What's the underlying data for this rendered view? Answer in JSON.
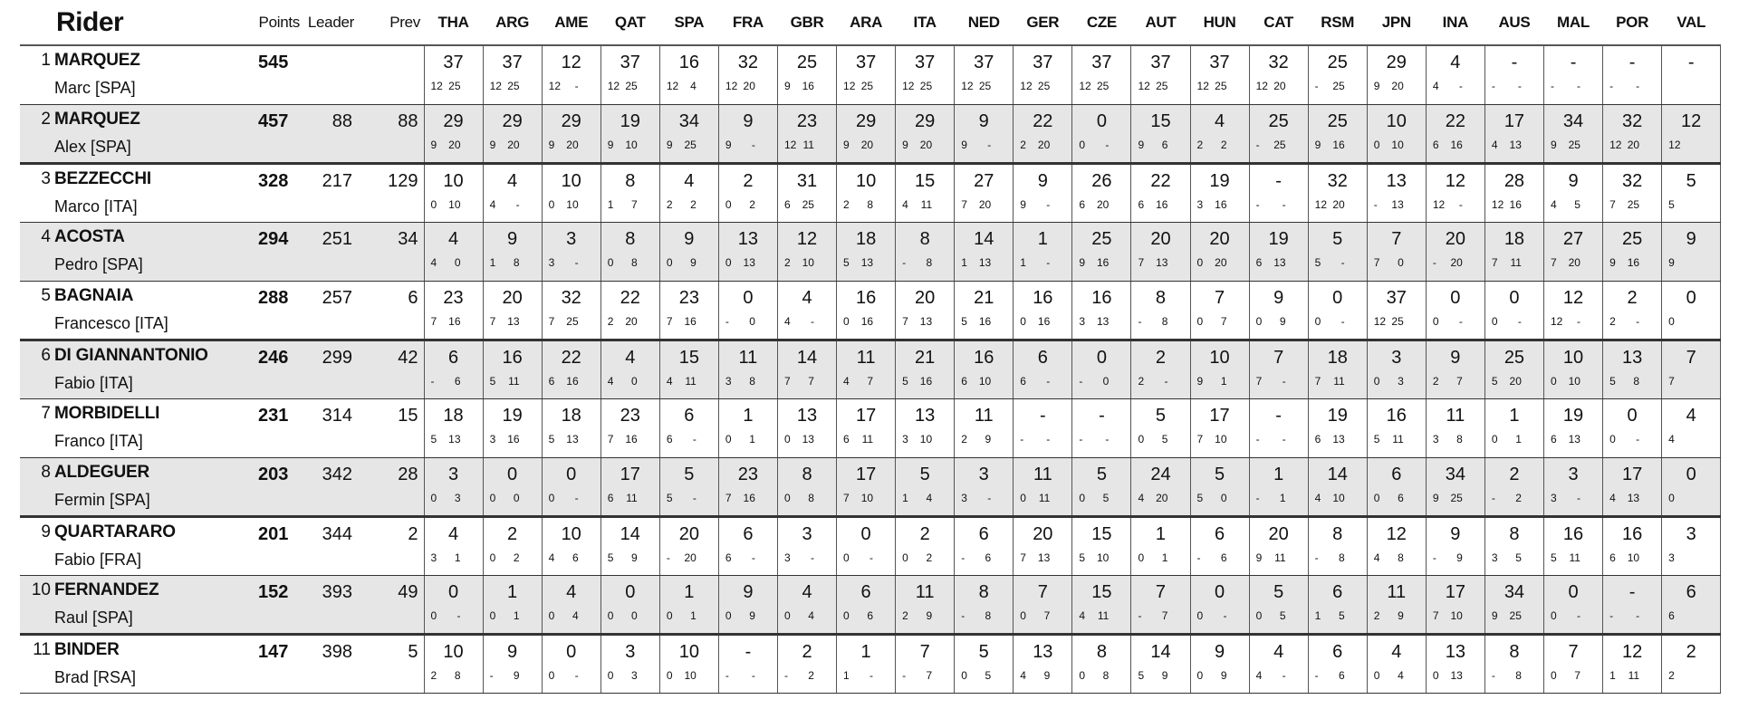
{
  "header": {
    "rider": "Rider",
    "points": "Points",
    "leader": "Leader",
    "prev": "Prev",
    "races": [
      "THA",
      "ARG",
      "AME",
      "QAT",
      "SPA",
      "FRA",
      "GBR",
      "ARA",
      "ITA",
      "NED",
      "GER",
      "CZE",
      "AUT",
      "HUN",
      "CAT",
      "RSM",
      "JPN",
      "INA",
      "AUS",
      "MAL",
      "POR",
      "VAL"
    ]
  },
  "riders": [
    {
      "rank": "1",
      "surname": "MARQUEZ",
      "first": "Marc [SPA]",
      "points": "545",
      "leader": "",
      "prev": "",
      "results": [
        [
          "37",
          "12",
          "25"
        ],
        [
          "37",
          "12",
          "25"
        ],
        [
          "12",
          "12",
          "-"
        ],
        [
          "37",
          "12",
          "25"
        ],
        [
          "16",
          "12",
          "4"
        ],
        [
          "32",
          "12",
          "20"
        ],
        [
          "25",
          "9",
          "16"
        ],
        [
          "37",
          "12",
          "25"
        ],
        [
          "37",
          "12",
          "25"
        ],
        [
          "37",
          "12",
          "25"
        ],
        [
          "37",
          "12",
          "25"
        ],
        [
          "37",
          "12",
          "25"
        ],
        [
          "37",
          "12",
          "25"
        ],
        [
          "37",
          "12",
          "25"
        ],
        [
          "32",
          "12",
          "20"
        ],
        [
          "25",
          "-",
          "25"
        ],
        [
          "29",
          "9",
          "20"
        ],
        [
          "4",
          "4",
          "-"
        ],
        [
          "-",
          "-",
          "-"
        ],
        [
          "-",
          "-",
          "-"
        ],
        [
          "-",
          "-",
          "-"
        ],
        [
          "-",
          "",
          ""
        ]
      ]
    },
    {
      "rank": "2",
      "surname": "MARQUEZ",
      "first": "Alex [SPA]",
      "points": "457",
      "leader": "88",
      "prev": "88",
      "results": [
        [
          "29",
          "9",
          "20"
        ],
        [
          "29",
          "9",
          "20"
        ],
        [
          "29",
          "9",
          "20"
        ],
        [
          "19",
          "9",
          "10"
        ],
        [
          "34",
          "9",
          "25"
        ],
        [
          "9",
          "9",
          "-"
        ],
        [
          "23",
          "12",
          "11"
        ],
        [
          "29",
          "9",
          "20"
        ],
        [
          "29",
          "9",
          "20"
        ],
        [
          "9",
          "9",
          "-"
        ],
        [
          "22",
          "2",
          "20"
        ],
        [
          "0",
          "0",
          "-"
        ],
        [
          "15",
          "9",
          "6"
        ],
        [
          "4",
          "2",
          "2"
        ],
        [
          "25",
          "-",
          "25"
        ],
        [
          "25",
          "9",
          "16"
        ],
        [
          "10",
          "0",
          "10"
        ],
        [
          "22",
          "6",
          "16"
        ],
        [
          "17",
          "4",
          "13"
        ],
        [
          "34",
          "9",
          "25"
        ],
        [
          "32",
          "12",
          "20"
        ],
        [
          "12",
          "12",
          ""
        ]
      ]
    },
    {
      "rank": "3",
      "surname": "BEZZECCHI",
      "first": "Marco [ITA]",
      "points": "328",
      "leader": "217",
      "prev": "129",
      "results": [
        [
          "10",
          "0",
          "10"
        ],
        [
          "4",
          "4",
          "-"
        ],
        [
          "10",
          "0",
          "10"
        ],
        [
          "8",
          "1",
          "7"
        ],
        [
          "4",
          "2",
          "2"
        ],
        [
          "2",
          "0",
          "2"
        ],
        [
          "31",
          "6",
          "25"
        ],
        [
          "10",
          "2",
          "8"
        ],
        [
          "15",
          "4",
          "11"
        ],
        [
          "27",
          "7",
          "20"
        ],
        [
          "9",
          "9",
          "-"
        ],
        [
          "26",
          "6",
          "20"
        ],
        [
          "22",
          "6",
          "16"
        ],
        [
          "19",
          "3",
          "16"
        ],
        [
          "-",
          "-",
          "-"
        ],
        [
          "32",
          "12",
          "20"
        ],
        [
          "13",
          "-",
          "13"
        ],
        [
          "12",
          "12",
          "-"
        ],
        [
          "28",
          "12",
          "16"
        ],
        [
          "9",
          "4",
          "5"
        ],
        [
          "32",
          "7",
          "25"
        ],
        [
          "5",
          "5",
          ""
        ]
      ]
    },
    {
      "rank": "4",
      "surname": "ACOSTA",
      "first": "Pedro [SPA]",
      "points": "294",
      "leader": "251",
      "prev": "34",
      "results": [
        [
          "4",
          "4",
          "0"
        ],
        [
          "9",
          "1",
          "8"
        ],
        [
          "3",
          "3",
          "-"
        ],
        [
          "8",
          "0",
          "8"
        ],
        [
          "9",
          "0",
          "9"
        ],
        [
          "13",
          "0",
          "13"
        ],
        [
          "12",
          "2",
          "10"
        ],
        [
          "18",
          "5",
          "13"
        ],
        [
          "8",
          "-",
          "8"
        ],
        [
          "14",
          "1",
          "13"
        ],
        [
          "1",
          "1",
          "-"
        ],
        [
          "25",
          "9",
          "16"
        ],
        [
          "20",
          "7",
          "13"
        ],
        [
          "20",
          "0",
          "20"
        ],
        [
          "19",
          "6",
          "13"
        ],
        [
          "5",
          "5",
          "-"
        ],
        [
          "7",
          "7",
          "0"
        ],
        [
          "20",
          "-",
          "20"
        ],
        [
          "18",
          "7",
          "11"
        ],
        [
          "27",
          "7",
          "20"
        ],
        [
          "25",
          "9",
          "16"
        ],
        [
          "9",
          "9",
          ""
        ]
      ]
    },
    {
      "rank": "5",
      "surname": "BAGNAIA",
      "first": "Francesco [ITA]",
      "points": "288",
      "leader": "257",
      "prev": "6",
      "results": [
        [
          "23",
          "7",
          "16"
        ],
        [
          "20",
          "7",
          "13"
        ],
        [
          "32",
          "7",
          "25"
        ],
        [
          "22",
          "2",
          "20"
        ],
        [
          "23",
          "7",
          "16"
        ],
        [
          "0",
          "-",
          "0"
        ],
        [
          "4",
          "4",
          "-"
        ],
        [
          "16",
          "0",
          "16"
        ],
        [
          "20",
          "7",
          "13"
        ],
        [
          "21",
          "5",
          "16"
        ],
        [
          "16",
          "0",
          "16"
        ],
        [
          "16",
          "3",
          "13"
        ],
        [
          "8",
          "-",
          "8"
        ],
        [
          "7",
          "0",
          "7"
        ],
        [
          "9",
          "0",
          "9"
        ],
        [
          "0",
          "0",
          "-"
        ],
        [
          "37",
          "12",
          "25"
        ],
        [
          "0",
          "0",
          "-"
        ],
        [
          "0",
          "0",
          "-"
        ],
        [
          "12",
          "12",
          "-"
        ],
        [
          "2",
          "2",
          "-"
        ],
        [
          "0",
          "0",
          ""
        ]
      ]
    },
    {
      "rank": "6",
      "surname": "DI GIANNANTONIO",
      "first": "Fabio [ITA]",
      "points": "246",
      "leader": "299",
      "prev": "42",
      "results": [
        [
          "6",
          "-",
          "6"
        ],
        [
          "16",
          "5",
          "11"
        ],
        [
          "22",
          "6",
          "16"
        ],
        [
          "4",
          "4",
          "0"
        ],
        [
          "15",
          "4",
          "11"
        ],
        [
          "11",
          "3",
          "8"
        ],
        [
          "14",
          "7",
          "7"
        ],
        [
          "11",
          "4",
          "7"
        ],
        [
          "21",
          "5",
          "16"
        ],
        [
          "16",
          "6",
          "10"
        ],
        [
          "6",
          "6",
          "-"
        ],
        [
          "0",
          "-",
          "0"
        ],
        [
          "2",
          "2",
          "-"
        ],
        [
          "10",
          "9",
          "1"
        ],
        [
          "7",
          "7",
          "-"
        ],
        [
          "18",
          "7",
          "11"
        ],
        [
          "3",
          "0",
          "3"
        ],
        [
          "9",
          "2",
          "7"
        ],
        [
          "25",
          "5",
          "20"
        ],
        [
          "10",
          "0",
          "10"
        ],
        [
          "13",
          "5",
          "8"
        ],
        [
          "7",
          "7",
          ""
        ]
      ]
    },
    {
      "rank": "7",
      "surname": "MORBIDELLI",
      "first": "Franco [ITA]",
      "points": "231",
      "leader": "314",
      "prev": "15",
      "results": [
        [
          "18",
          "5",
          "13"
        ],
        [
          "19",
          "3",
          "16"
        ],
        [
          "18",
          "5",
          "13"
        ],
        [
          "23",
          "7",
          "16"
        ],
        [
          "6",
          "6",
          "-"
        ],
        [
          "1",
          "0",
          "1"
        ],
        [
          "13",
          "0",
          "13"
        ],
        [
          "17",
          "6",
          "11"
        ],
        [
          "13",
          "3",
          "10"
        ],
        [
          "11",
          "2",
          "9"
        ],
        [
          "-",
          "-",
          "-"
        ],
        [
          "-",
          "-",
          "-"
        ],
        [
          "5",
          "0",
          "5"
        ],
        [
          "17",
          "7",
          "10"
        ],
        [
          "-",
          "-",
          "-"
        ],
        [
          "19",
          "6",
          "13"
        ],
        [
          "16",
          "5",
          "11"
        ],
        [
          "11",
          "3",
          "8"
        ],
        [
          "1",
          "0",
          "1"
        ],
        [
          "19",
          "6",
          "13"
        ],
        [
          "0",
          "0",
          "-"
        ],
        [
          "4",
          "4",
          ""
        ]
      ]
    },
    {
      "rank": "8",
      "surname": "ALDEGUER",
      "first": "Fermin [SPA]",
      "points": "203",
      "leader": "342",
      "prev": "28",
      "results": [
        [
          "3",
          "0",
          "3"
        ],
        [
          "0",
          "0",
          "0"
        ],
        [
          "0",
          "0",
          "-"
        ],
        [
          "17",
          "6",
          "11"
        ],
        [
          "5",
          "5",
          "-"
        ],
        [
          "23",
          "7",
          "16"
        ],
        [
          "8",
          "0",
          "8"
        ],
        [
          "17",
          "7",
          "10"
        ],
        [
          "5",
          "1",
          "4"
        ],
        [
          "3",
          "3",
          "-"
        ],
        [
          "11",
          "0",
          "11"
        ],
        [
          "5",
          "0",
          "5"
        ],
        [
          "24",
          "4",
          "20"
        ],
        [
          "5",
          "5",
          "0"
        ],
        [
          "1",
          "-",
          "1"
        ],
        [
          "14",
          "4",
          "10"
        ],
        [
          "6",
          "0",
          "6"
        ],
        [
          "34",
          "9",
          "25"
        ],
        [
          "2",
          "-",
          "2"
        ],
        [
          "3",
          "3",
          "-"
        ],
        [
          "17",
          "4",
          "13"
        ],
        [
          "0",
          "0",
          ""
        ]
      ]
    },
    {
      "rank": "9",
      "surname": "QUARTARARO",
      "first": "Fabio [FRA]",
      "points": "201",
      "leader": "344",
      "prev": "2",
      "results": [
        [
          "4",
          "3",
          "1"
        ],
        [
          "2",
          "0",
          "2"
        ],
        [
          "10",
          "4",
          "6"
        ],
        [
          "14",
          "5",
          "9"
        ],
        [
          "20",
          "-",
          "20"
        ],
        [
          "6",
          "6",
          "-"
        ],
        [
          "3",
          "3",
          "-"
        ],
        [
          "0",
          "0",
          "-"
        ],
        [
          "2",
          "0",
          "2"
        ],
        [
          "6",
          "-",
          "6"
        ],
        [
          "20",
          "7",
          "13"
        ],
        [
          "15",
          "5",
          "10"
        ],
        [
          "1",
          "0",
          "1"
        ],
        [
          "6",
          "-",
          "6"
        ],
        [
          "20",
          "9",
          "11"
        ],
        [
          "8",
          "-",
          "8"
        ],
        [
          "12",
          "4",
          "8"
        ],
        [
          "9",
          "-",
          "9"
        ],
        [
          "8",
          "3",
          "5"
        ],
        [
          "16",
          "5",
          "11"
        ],
        [
          "16",
          "6",
          "10"
        ],
        [
          "3",
          "3",
          ""
        ]
      ]
    },
    {
      "rank": "10",
      "surname": "FERNANDEZ",
      "first": "Raul [SPA]",
      "points": "152",
      "leader": "393",
      "prev": "49",
      "results": [
        [
          "0",
          "0",
          "-"
        ],
        [
          "1",
          "0",
          "1"
        ],
        [
          "4",
          "0",
          "4"
        ],
        [
          "0",
          "0",
          "0"
        ],
        [
          "1",
          "0",
          "1"
        ],
        [
          "9",
          "0",
          "9"
        ],
        [
          "4",
          "0",
          "4"
        ],
        [
          "6",
          "0",
          "6"
        ],
        [
          "11",
          "2",
          "9"
        ],
        [
          "8",
          "-",
          "8"
        ],
        [
          "7",
          "0",
          "7"
        ],
        [
          "15",
          "4",
          "11"
        ],
        [
          "7",
          "-",
          "7"
        ],
        [
          "0",
          "0",
          "-"
        ],
        [
          "5",
          "0",
          "5"
        ],
        [
          "6",
          "1",
          "5"
        ],
        [
          "11",
          "2",
          "9"
        ],
        [
          "17",
          "7",
          "10"
        ],
        [
          "34",
          "9",
          "25"
        ],
        [
          "0",
          "0",
          "-"
        ],
        [
          "-",
          "-",
          "-"
        ],
        [
          "6",
          "6",
          ""
        ]
      ]
    },
    {
      "rank": "11",
      "surname": "BINDER",
      "first": "Brad [RSA]",
      "points": "147",
      "leader": "398",
      "prev": "5",
      "results": [
        [
          "10",
          "2",
          "8"
        ],
        [
          "9",
          "-",
          "9"
        ],
        [
          "0",
          "0",
          "-"
        ],
        [
          "3",
          "0",
          "3"
        ],
        [
          "10",
          "0",
          "10"
        ],
        [
          "-",
          "-",
          "-"
        ],
        [
          "2",
          "-",
          "2"
        ],
        [
          "1",
          "1",
          "-"
        ],
        [
          "7",
          "-",
          "7"
        ],
        [
          "5",
          "0",
          "5"
        ],
        [
          "13",
          "4",
          "9"
        ],
        [
          "8",
          "0",
          "8"
        ],
        [
          "14",
          "5",
          "9"
        ],
        [
          "9",
          "0",
          "9"
        ],
        [
          "4",
          "4",
          "-"
        ],
        [
          "6",
          "-",
          "6"
        ],
        [
          "4",
          "0",
          "4"
        ],
        [
          "13",
          "0",
          "13"
        ],
        [
          "8",
          "-",
          "8"
        ],
        [
          "7",
          "0",
          "7"
        ],
        [
          "12",
          "1",
          "11"
        ],
        [
          "2",
          "2",
          ""
        ]
      ]
    }
  ]
}
